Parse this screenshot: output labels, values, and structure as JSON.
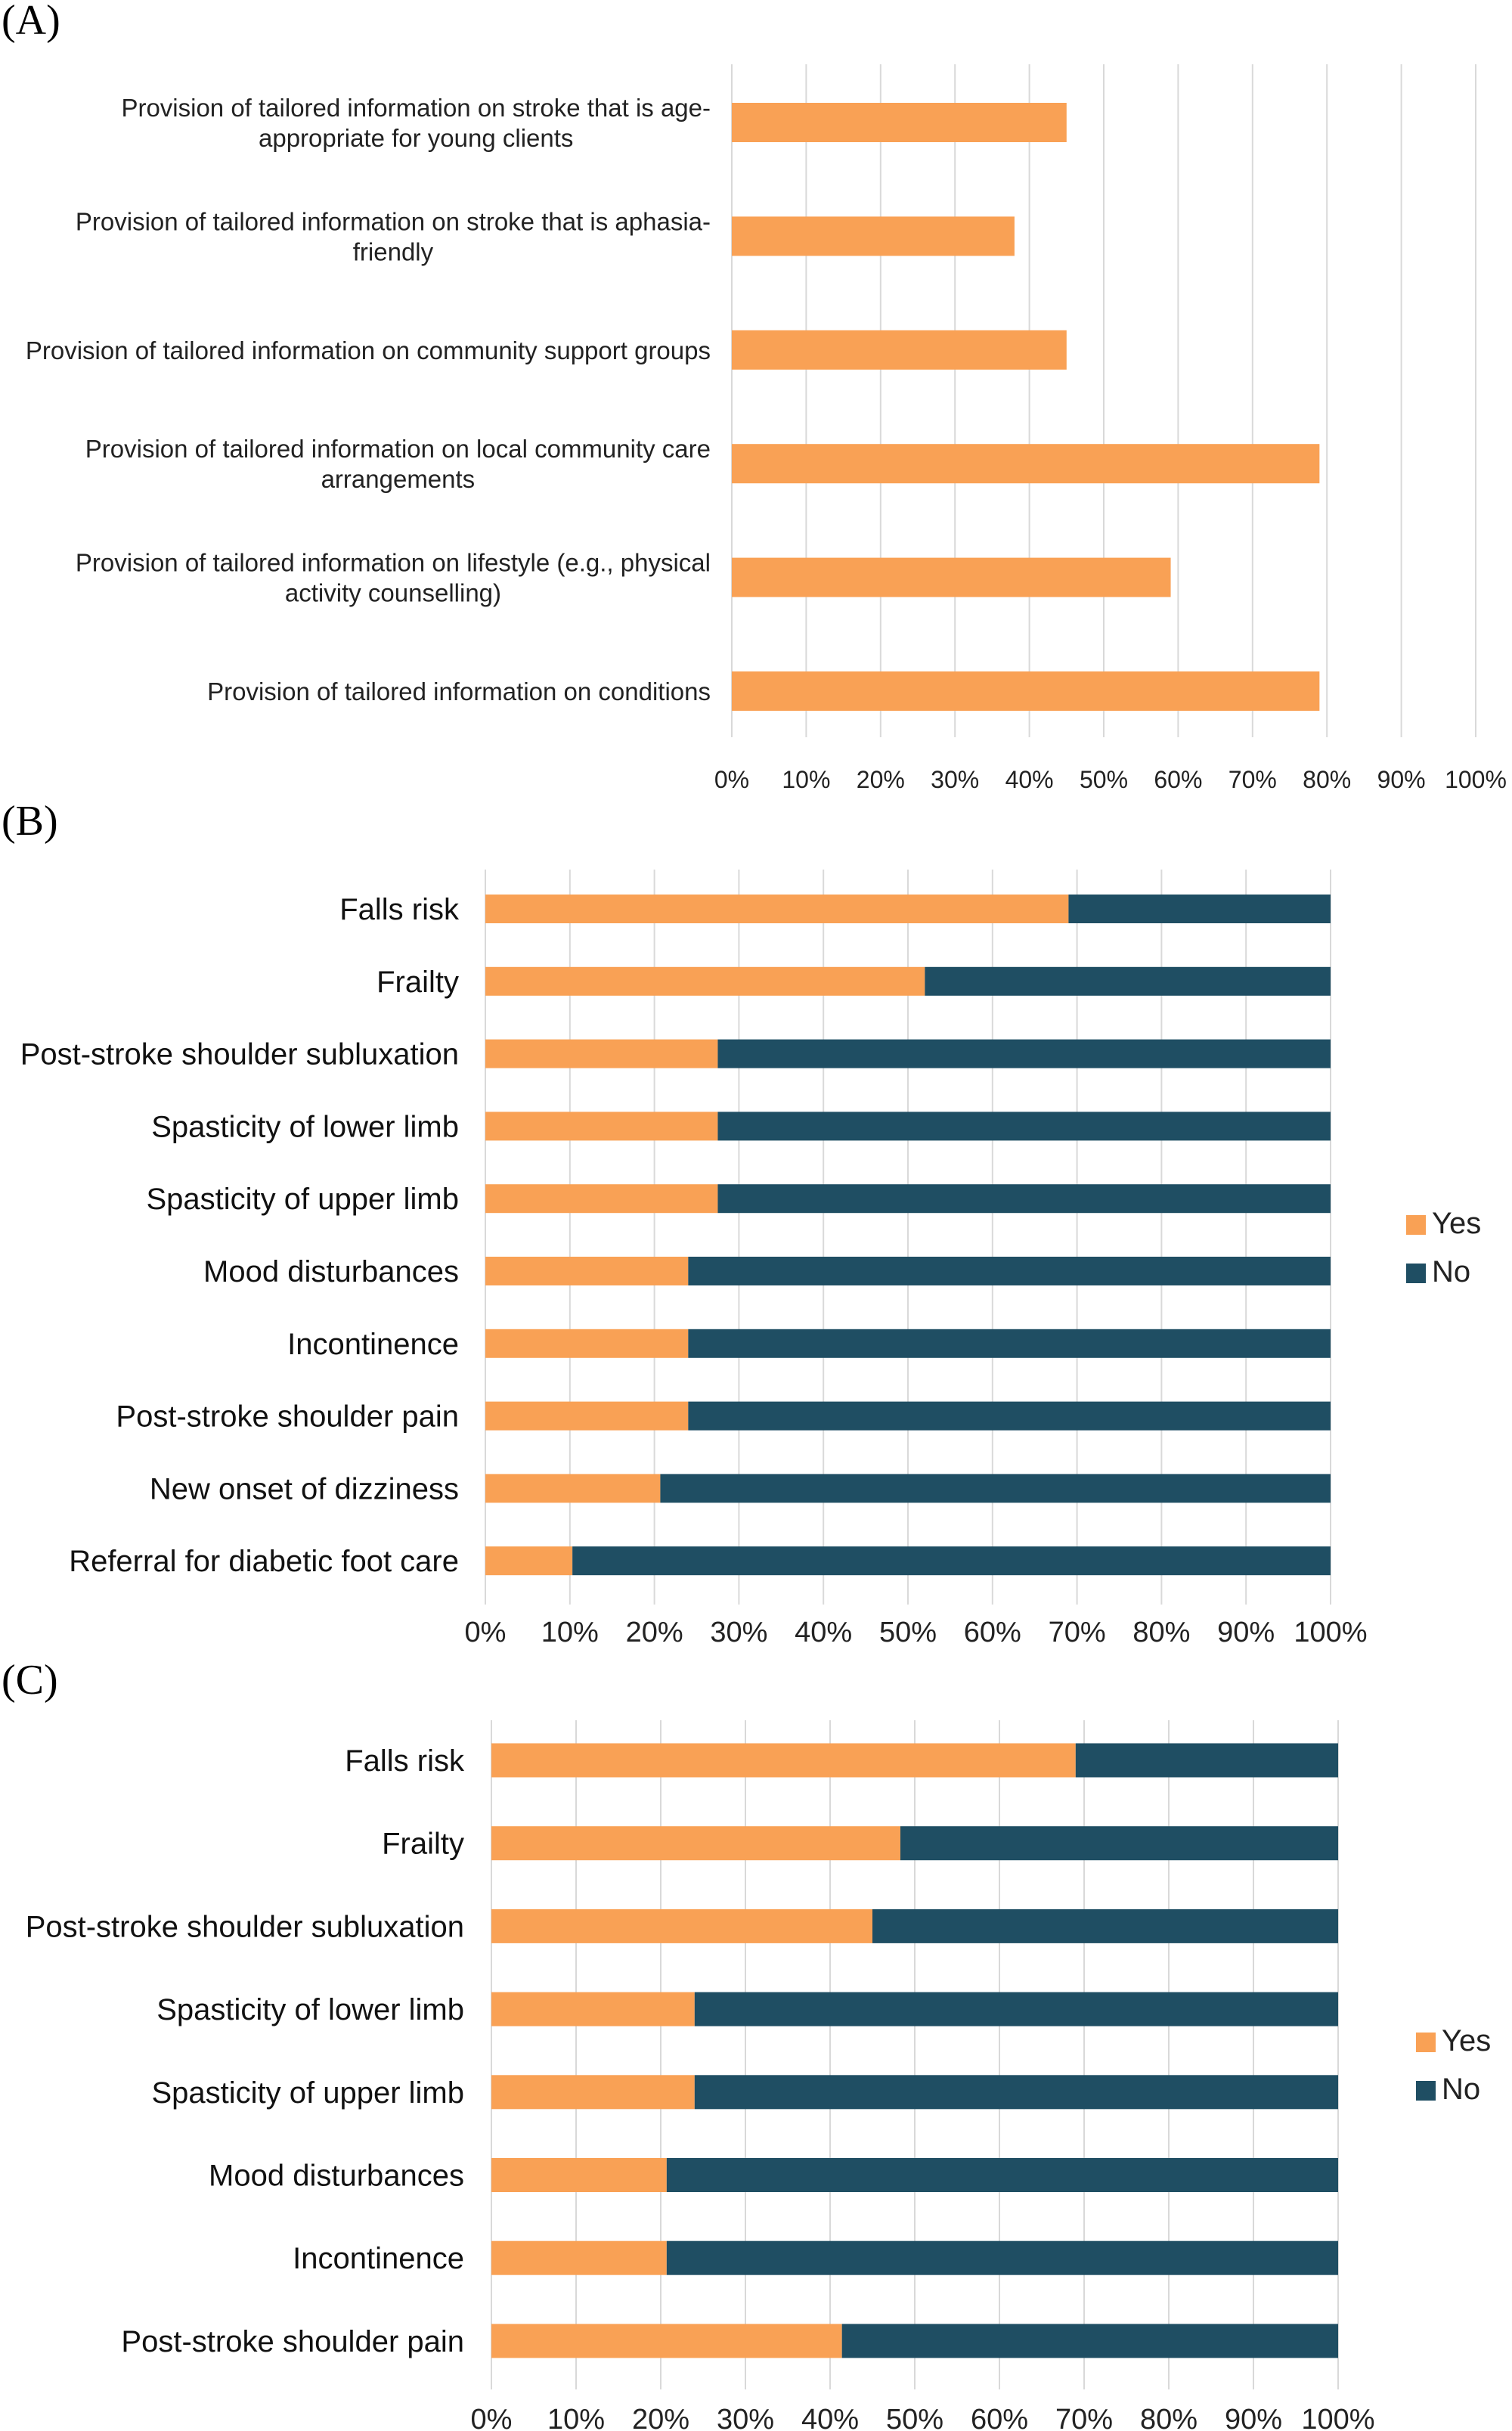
{
  "colors": {
    "yes": "#F9A155",
    "no": "#1F4E63",
    "grid": "#D9D9D9"
  },
  "chart_data": [
    {
      "panel_label": "(A)",
      "type": "bar",
      "orientation": "horizontal",
      "xlim": [
        0,
        100
      ],
      "x_ticks": [
        "0%",
        "10%",
        "20%",
        "30%",
        "40%",
        "50%",
        "60%",
        "70%",
        "80%",
        "90%",
        "100%"
      ],
      "grid": true,
      "categories": [
        [
          "Provision of tailored information on stroke that is age-",
          "appropriate for young clients"
        ],
        [
          "Provision of tailored information on stroke that is aphasia-",
          "friendly"
        ],
        [
          "Provision of tailored information on community support groups"
        ],
        [
          "Provision of tailored information on local community care",
          "arrangements"
        ],
        [
          "Provision of tailored information on lifestyle (e.g., physical",
          "activity counselling)"
        ],
        [
          "Provision of tailored information on conditions"
        ]
      ],
      "values": [
        45,
        38,
        45,
        79,
        59,
        79
      ]
    },
    {
      "panel_label": "(B)",
      "type": "bar",
      "orientation": "horizontal",
      "stacked": "percent",
      "xlim": [
        0,
        100
      ],
      "x_ticks": [
        "0%",
        "10%",
        "20%",
        "30%",
        "40%",
        "50%",
        "60%",
        "70%",
        "80%",
        "90%",
        "100%"
      ],
      "grid": true,
      "legend": "right",
      "categories": [
        "Falls risk",
        "Frailty",
        "Post-stroke shoulder subluxation",
        "Spasticity of lower limb",
        "Spasticity of upper limb",
        "Mood disturbances",
        "Incontinence",
        "Post-stroke shoulder pain",
        "New onset of dizziness",
        "Referral for diabetic foot care"
      ],
      "series": [
        {
          "name": "Yes",
          "values": [
            69,
            52,
            27.5,
            27.5,
            27.5,
            24,
            24,
            24,
            20.7,
            10.3
          ]
        },
        {
          "name": "No",
          "values": [
            31,
            48,
            72.5,
            72.5,
            72.5,
            76,
            76,
            76,
            79.3,
            89.7
          ]
        }
      ]
    },
    {
      "panel_label": "(C)",
      "type": "bar",
      "orientation": "horizontal",
      "stacked": "percent",
      "xlim": [
        0,
        100
      ],
      "x_ticks": [
        "0%",
        "10%",
        "20%",
        "30%",
        "40%",
        "50%",
        "60%",
        "70%",
        "80%",
        "90%",
        "100%"
      ],
      "grid": true,
      "legend": "right",
      "categories": [
        "Falls risk",
        "Frailty",
        "Post-stroke shoulder subluxation",
        "Spasticity of lower limb",
        "Spasticity of upper limb",
        "Mood disturbances",
        "Incontinence",
        "Post-stroke shoulder pain"
      ],
      "series": [
        {
          "name": "Yes",
          "values": [
            69,
            48.3,
            45,
            24,
            24,
            20.7,
            20.7,
            41.4
          ]
        },
        {
          "name": "No",
          "values": [
            31,
            51.7,
            55,
            76,
            76,
            79.3,
            79.3,
            58.6
          ]
        }
      ]
    }
  ]
}
